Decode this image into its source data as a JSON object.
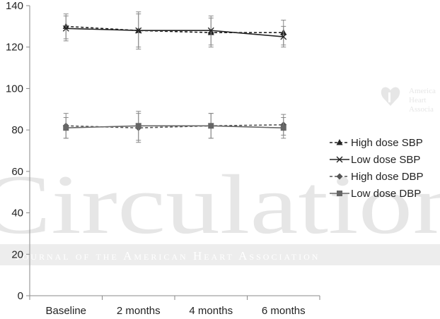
{
  "chart_data": {
    "type": "line",
    "categories": [
      "Baseline",
      "2 months",
      "4 months",
      "6 months"
    ],
    "ylim": [
      0,
      140
    ],
    "yticks": [
      0,
      20,
      40,
      60,
      80,
      100,
      120,
      140
    ],
    "grid": false,
    "legend_position": "right",
    "series": [
      {
        "name": "High dose SBP",
        "values": [
          130,
          128,
          127,
          127
        ],
        "error": [
          6,
          9,
          7,
          6
        ],
        "color": "#222222",
        "dash": "dashed",
        "marker": "triangle"
      },
      {
        "name": "Low dose SBP",
        "values": [
          129,
          128,
          128,
          125
        ],
        "error": [
          6,
          8,
          7,
          5
        ],
        "color": "#222222",
        "dash": "solid",
        "marker": "x"
      },
      {
        "name": "High dose DBP",
        "values": [
          82,
          81,
          82,
          82.5
        ],
        "error": [
          6,
          7,
          6,
          5
        ],
        "color": "#555555",
        "dash": "dashed",
        "marker": "diamond"
      },
      {
        "name": "Low dose DBP",
        "values": [
          81,
          82,
          82,
          81
        ],
        "error": [
          5,
          7,
          6,
          5
        ],
        "color": "#666666",
        "dash": "solid",
        "marker": "square"
      }
    ],
    "watermark": {
      "big": "Circulation",
      "band": "Journal of the American Heart Association",
      "logo": "American Heart Association"
    }
  }
}
